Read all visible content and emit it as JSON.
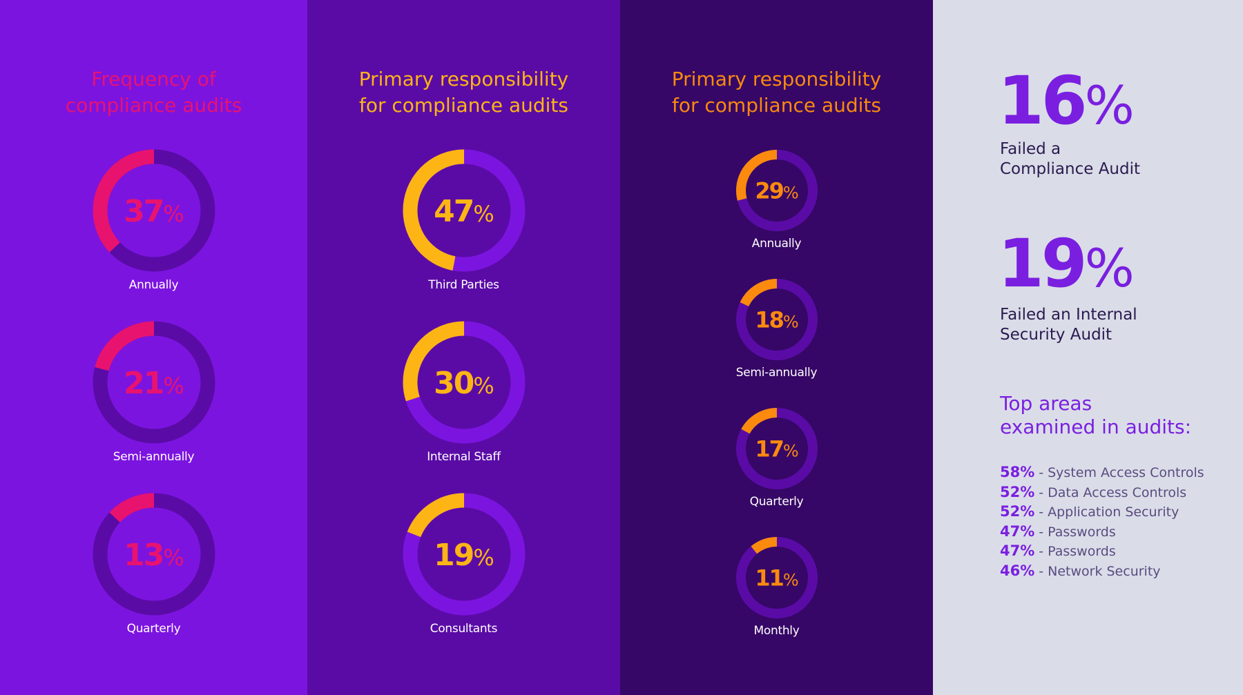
{
  "chart_data": [
    {
      "type": "donut",
      "title": "Frequency of compliance audits",
      "categories": [
        "Annually",
        "Semi-annually",
        "Quarterly"
      ],
      "values": [
        37,
        21,
        13
      ],
      "unit": "%",
      "colors": {
        "arc": "#e8136f",
        "track": "#5a0ba6",
        "text": "#e8136f"
      }
    },
    {
      "type": "donut",
      "title": "Primary responsibility for compliance audits",
      "categories": [
        "Third  Parties",
        "Internal Staff",
        "Consultants"
      ],
      "values": [
        47,
        30,
        19
      ],
      "unit": "%",
      "colors": {
        "arc": "#fdb515",
        "track": "#7c14e0",
        "text": "#fdb515"
      }
    },
    {
      "type": "donut",
      "title": "Primary responsibility for compliance audits",
      "categories": [
        "Annually",
        "Semi-annually",
        "Quarterly",
        "Monthly"
      ],
      "values": [
        29,
        18,
        17,
        11
      ],
      "unit": "%",
      "colors": {
        "arc": "#fb8a0f",
        "track": "#5a0ba6",
        "text": "#fb8a0f"
      }
    }
  ],
  "stats": [
    {
      "value": "16",
      "unit": "%",
      "caption": "Failed a\nCompliance Audit"
    },
    {
      "value": "19",
      "unit": "%",
      "caption": "Failed an Internal\nSecurity Audit"
    }
  ],
  "top_areas": {
    "title": "Top areas\nexamined in audits:",
    "items": [
      {
        "pct": "58%",
        "name": "System Access Controls"
      },
      {
        "pct": "52%",
        "name": "Data Access Controls"
      },
      {
        "pct": "52%",
        "name": "Application Security"
      },
      {
        "pct": "47%",
        "name": "Passwords"
      },
      {
        "pct": "47%",
        "name": "Passwords"
      },
      {
        "pct": "46%",
        "name": "Network Security"
      }
    ]
  },
  "colors": {
    "panel1": "#7c14e0",
    "panel2": "#5a0ba6",
    "panel3": "#360766",
    "panel4": "#dadde8",
    "accent": "#7a1fe0"
  }
}
